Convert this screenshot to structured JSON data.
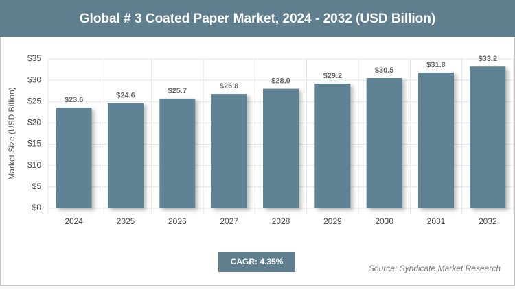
{
  "chart_data": {
    "type": "bar",
    "title": "Global # 3 Coated Paper Market, 2024 - 2032 (USD Billion)",
    "y_label": "Market Size (USD Billion)",
    "categories": [
      "2024",
      "2025",
      "2026",
      "2027",
      "2028",
      "2029",
      "2030",
      "2031",
      "2032"
    ],
    "values": [
      23.6,
      24.6,
      25.7,
      26.8,
      28.0,
      29.2,
      30.5,
      31.8,
      33.2
    ],
    "value_labels": [
      "$23.6",
      "$24.6",
      "$25.7",
      "$26.8",
      "$28.0",
      "$29.2",
      "$30.5",
      "$31.8",
      "$33.2"
    ],
    "color": "#5f8394",
    "ylim": [
      0,
      35
    ],
    "yticks": [
      {
        "value": 0,
        "label": "$0"
      },
      {
        "value": 5,
        "label": "$5"
      },
      {
        "value": 10,
        "label": "$10"
      },
      {
        "value": 15,
        "label": "$15"
      },
      {
        "value": 20,
        "label": "$20"
      },
      {
        "value": 25,
        "label": "$25"
      },
      {
        "value": 30,
        "label": "$30"
      },
      {
        "value": 35,
        "label": "$35"
      }
    ],
    "grid": true,
    "cagr": "CAGR: 4.35%",
    "source": "Source: Syndicate Market Research"
  }
}
